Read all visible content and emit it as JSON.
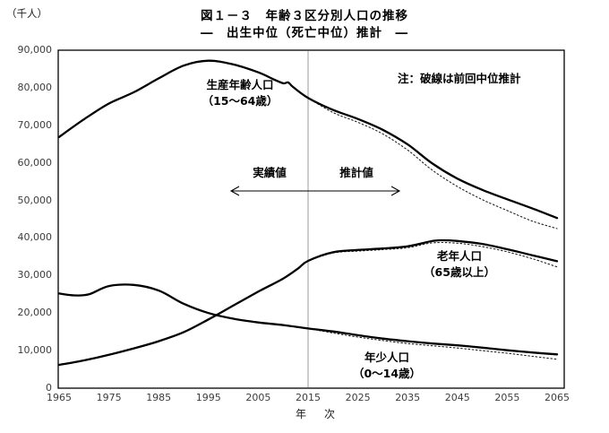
{
  "header": {
    "title_line1": "図１－３　年齢３区分別人口の推移",
    "title_line2": "―　出生中位（死亡中位）推計　―"
  },
  "axes": {
    "y_unit": "（千人）",
    "x_title": "年　次",
    "y_ticks": [
      "0",
      "10,000",
      "20,000",
      "30,000",
      "40,000",
      "50,000",
      "60,000",
      "70,000",
      "80,000",
      "90,000"
    ],
    "x_ticks": [
      "1965",
      "1975",
      "1985",
      "1995",
      "2005",
      "2015",
      "2025",
      "2035",
      "2045",
      "2055",
      "2065"
    ]
  },
  "annotations": {
    "working_age": {
      "line1": "生産年齢人口",
      "line2": "（15～64歳）"
    },
    "elderly": {
      "line1": "老年人口",
      "line2": "（65歳以上）"
    },
    "young": {
      "line1": "年少人口",
      "line2": "（0～14歳）"
    },
    "note": "注：破線は前回中位推計",
    "actual": "実績値",
    "projection": "推計値"
  },
  "colors": {
    "line": "#000000",
    "dotted_line": "#222222",
    "boundary_line": "#9b9b9b",
    "frame": "#000000"
  },
  "chart_data": {
    "type": "line",
    "title": "図１－３　年齢３区分別人口の推移 ― 出生中位（死亡中位）推計 ―",
    "xlabel": "年次",
    "ylabel": "千人",
    "xlim": [
      1965,
      2065
    ],
    "ylim": [
      0,
      90000
    ],
    "x_tick_step": 10,
    "y_tick_step": 10000,
    "grid": false,
    "legend_position": "inline-labels",
    "boundary_year": 2015,
    "note": "破線は前回中位推計（点線系列）",
    "series": [
      {
        "name": "生産年齢人口（15～64歳）",
        "style": "solid",
        "x": [
          1965,
          1970,
          1975,
          1980,
          1985,
          1990,
          1995,
          2000,
          2005,
          2008,
          2010,
          2011,
          2012,
          2015,
          2020,
          2025,
          2030,
          2035,
          2040,
          2045,
          2050,
          2055,
          2060,
          2065
        ],
        "values": [
          66900,
          71600,
          75800,
          78800,
          82500,
          85900,
          87200,
          86200,
          84100,
          82300,
          81200,
          81400,
          80200,
          77300,
          74100,
          71700,
          68800,
          64900,
          59800,
          55800,
          52800,
          50300,
          47900,
          45300
        ]
      },
      {
        "name": "老年人口（65歳以上）",
        "style": "solid",
        "x": [
          1965,
          1970,
          1975,
          1980,
          1985,
          1990,
          1995,
          2000,
          2005,
          2010,
          2013,
          2015,
          2020,
          2025,
          2030,
          2035,
          2040,
          2042,
          2045,
          2050,
          2055,
          2060,
          2065
        ],
        "values": [
          6200,
          7400,
          8900,
          10600,
          12500,
          14900,
          18300,
          22000,
          25700,
          29200,
          31900,
          33900,
          36200,
          36800,
          37200,
          37800,
          39200,
          39400,
          39200,
          38400,
          37000,
          35400,
          33800
        ]
      },
      {
        "name": "年少人口（0～14歳）",
        "style": "solid",
        "x": [
          1965,
          1968,
          1971,
          1975,
          1980,
          1985,
          1990,
          1995,
          2000,
          2005,
          2010,
          2015,
          2020,
          2025,
          2030,
          2035,
          2040,
          2045,
          2050,
          2055,
          2060,
          2065
        ],
        "values": [
          25200,
          24700,
          25000,
          27200,
          27500,
          26000,
          22500,
          20000,
          18500,
          17500,
          16800,
          15900,
          15100,
          14100,
          13200,
          12500,
          11900,
          11400,
          10800,
          10100,
          9500,
          9000
        ]
      },
      {
        "name": "生産年齢人口（前回中位推計）",
        "style": "dotted",
        "x": [
          2015,
          2020,
          2025,
          2030,
          2035,
          2040,
          2045,
          2050,
          2055,
          2060,
          2065
        ],
        "values": [
          77300,
          73400,
          70800,
          67700,
          63400,
          58000,
          53700,
          50200,
          47300,
          44500,
          42500
        ]
      },
      {
        "name": "老年人口（前回中位推計）",
        "style": "dotted",
        "x": [
          2015,
          2020,
          2025,
          2030,
          2035,
          2040,
          2045,
          2050,
          2055,
          2060,
          2065
        ],
        "values": [
          33900,
          36000,
          36500,
          36900,
          37400,
          38700,
          38600,
          37700,
          36300,
          34500,
          32300
        ]
      },
      {
        "name": "年少人口（前回中位推計）",
        "style": "dotted",
        "x": [
          2015,
          2020,
          2025,
          2030,
          2035,
          2040,
          2045,
          2050,
          2055,
          2060,
          2065
        ],
        "values": [
          15900,
          14700,
          13600,
          12700,
          11900,
          11300,
          10700,
          10000,
          9300,
          8500,
          7700
        ]
      }
    ]
  }
}
